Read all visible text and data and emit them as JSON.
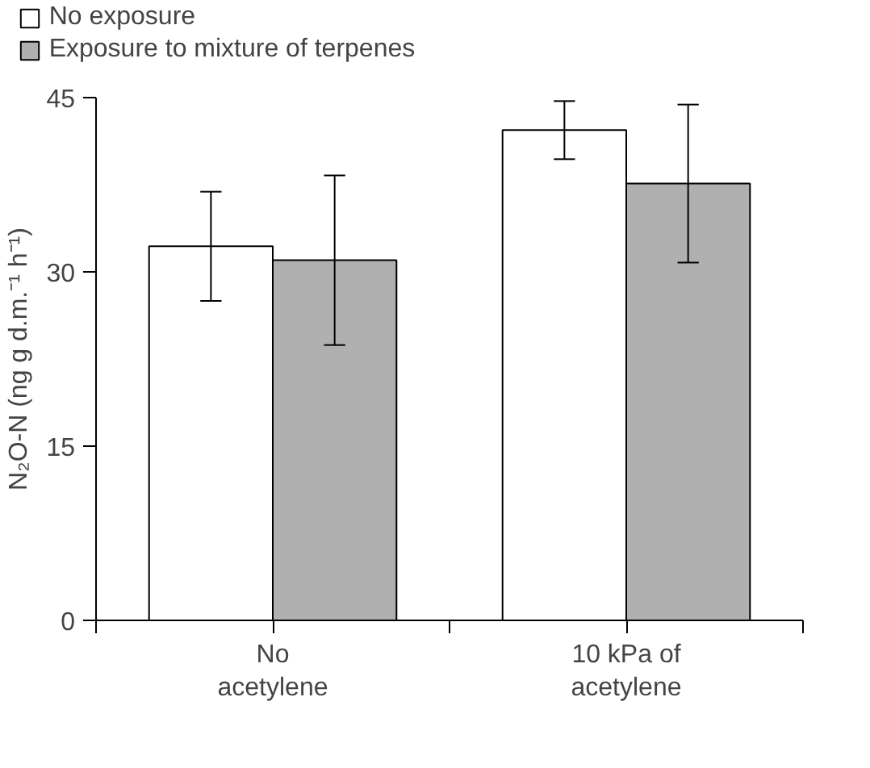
{
  "chart_data": {
    "type": "bar",
    "ylabel": "N₂O-N (ng g d.m.⁻¹ h⁻¹)",
    "categories": [
      "No\nacetylene",
      "10 kPa of\nacetylene"
    ],
    "series": [
      {
        "name": "No exposure",
        "color": "#ffffff",
        "values": [
          32.2,
          42.2
        ],
        "errors": [
          4.7,
          2.5
        ]
      },
      {
        "name": "Exposure to mixture of terpenes",
        "color": "#b0b0b0",
        "values": [
          31.0,
          37.6
        ],
        "errors": [
          7.3,
          6.8
        ]
      }
    ],
    "ylim": [
      0,
      45
    ],
    "yticks": [
      0,
      15,
      30,
      45
    ],
    "grid": false,
    "legend": "top left"
  }
}
